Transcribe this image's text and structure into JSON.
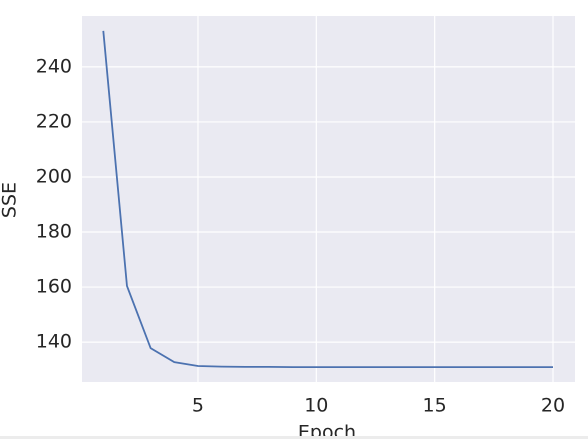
{
  "chart_data": {
    "type": "line",
    "x_label": "Epoch",
    "y_label": "SSE",
    "x": [
      1,
      2,
      3,
      4,
      5,
      6,
      7,
      8,
      9,
      10,
      11,
      12,
      13,
      14,
      15,
      16,
      17,
      18,
      19,
      20
    ],
    "series": [
      {
        "name": "SSE",
        "color": "#4c72b0",
        "values": [
          253.1,
          160.4,
          137.8,
          132.7,
          131.3,
          131.1,
          131.0,
          131.0,
          130.9,
          130.9,
          130.9,
          130.9,
          130.9,
          130.9,
          130.9,
          130.9,
          130.9,
          130.9,
          130.9,
          130.9
        ]
      }
    ],
    "xlim": [
      0.1,
      20.93
    ],
    "ylim": [
      125.5,
      258.5
    ],
    "xticks": [
      5,
      10,
      15,
      20
    ],
    "yticks": [
      140,
      160,
      180,
      200,
      220,
      240
    ],
    "grid": true,
    "background": "#eaeaf2"
  }
}
